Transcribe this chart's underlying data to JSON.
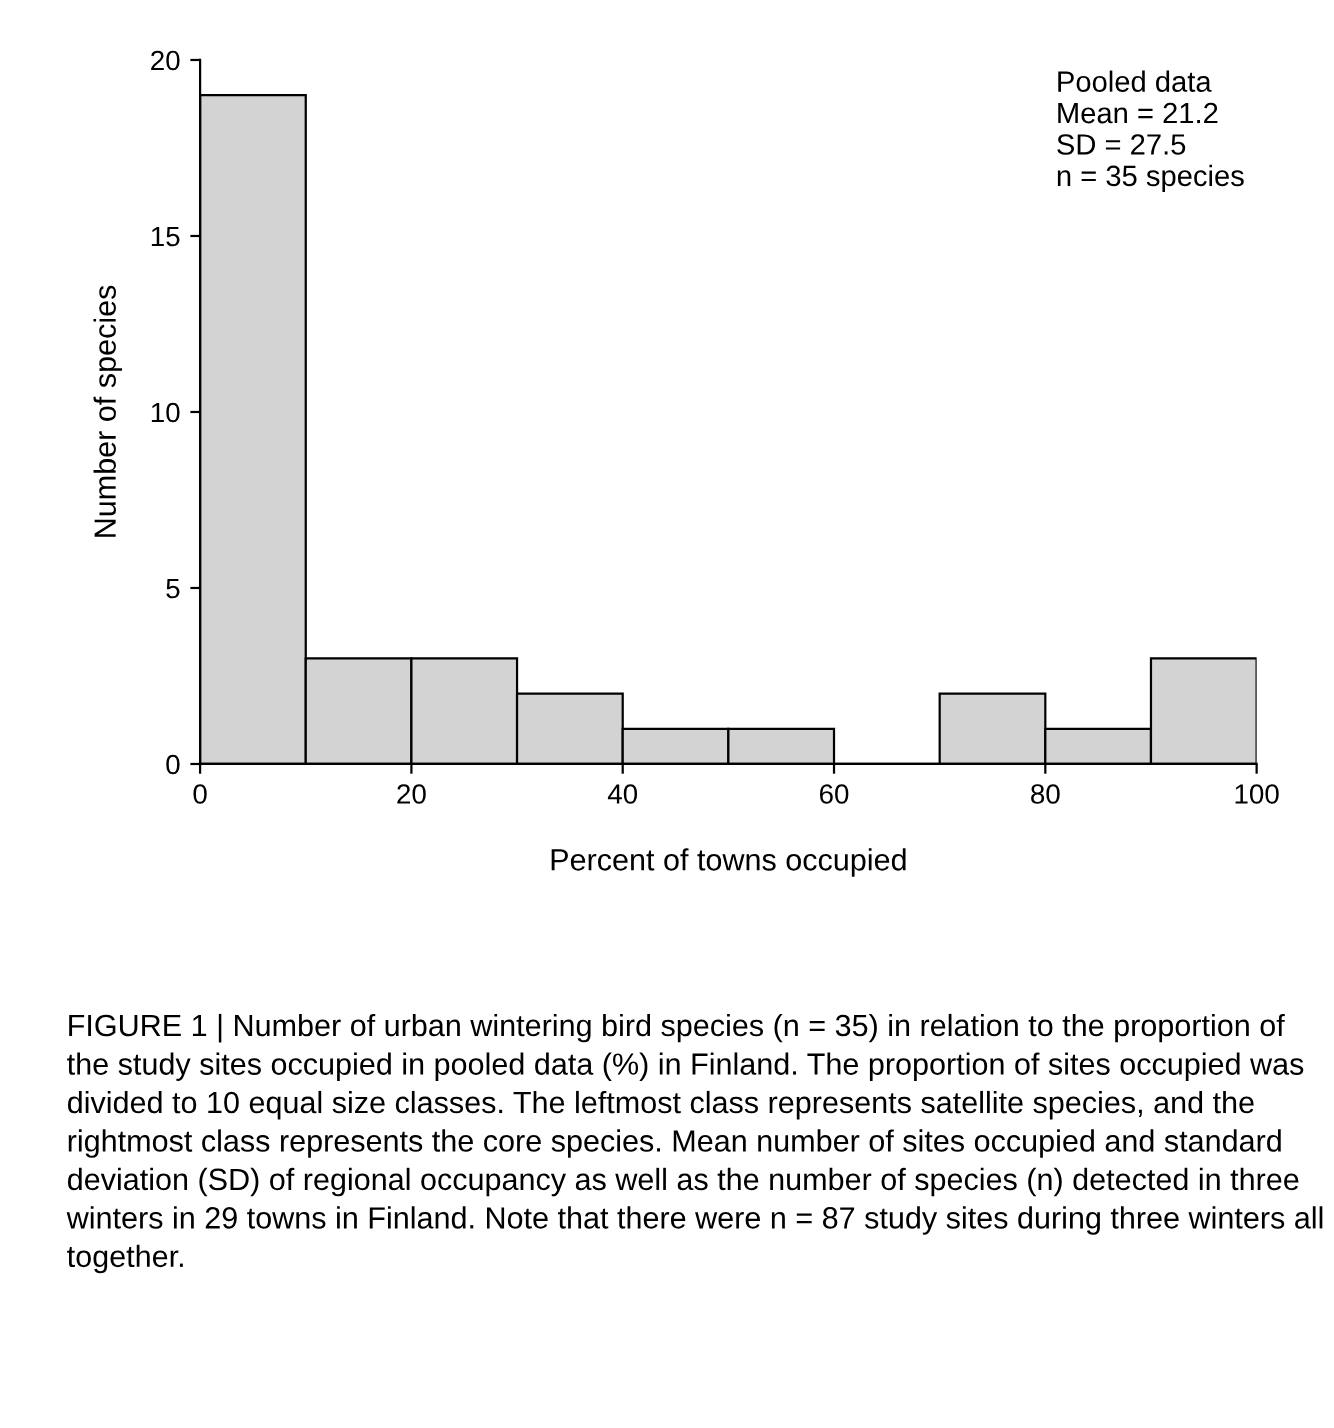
{
  "chart_data": {
    "type": "histogram",
    "xlabel": "Percent of towns occupied",
    "ylabel": "Number of species",
    "bins": [
      0,
      10,
      20,
      30,
      40,
      50,
      60,
      70,
      80,
      90,
      100
    ],
    "values": [
      19,
      3,
      3,
      2,
      1,
      1,
      0,
      2,
      1,
      3
    ],
    "color": "#d3d3d3",
    "xlim": [
      0,
      100
    ],
    "xticks": [
      0,
      20,
      40,
      60,
      80,
      100
    ],
    "ylim": [
      0,
      20
    ],
    "yticks": [
      0,
      5,
      10,
      15,
      20
    ],
    "grid": false,
    "annotations": [
      "Pooled data\nMean = 21.2\nSD = 27.5\nn = 35 species",
      "FIGURE 1 | Number of urban wintering bird species (n = 35) in relation to the proportion of the study sites occupied in pooled data (%) in Finland. The proportion of sites occupied was divided to 10 equal size classes. The leftmost class represents satellite species, and the rightmost class represents the core species. Mean number of sites occupied and standard deviation (SD) of regional occupancy as well as the number of species (n) detected in three winters in 29 towns in Finland. Note that there were n = 87 study sites during three winters all together."
    ]
  }
}
